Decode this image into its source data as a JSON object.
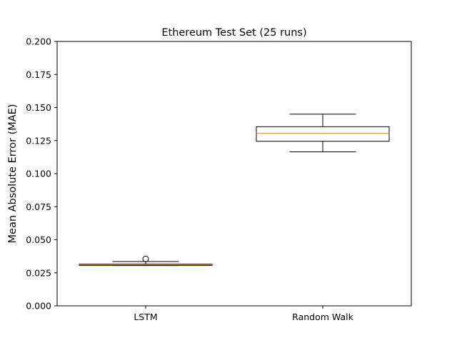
{
  "chart_data": {
    "type": "box",
    "title": "Ethereum Test Set (25 runs)",
    "xlabel": "",
    "ylabel": "Mean Absolute Error (MAE)",
    "ylim": [
      0.0,
      0.2
    ],
    "yticks": [
      "0.000",
      "0.025",
      "0.050",
      "0.075",
      "0.100",
      "0.125",
      "0.150",
      "0.175",
      "0.200"
    ],
    "grid": false,
    "categories": [
      "LSTM",
      "Random Walk"
    ],
    "boxes": [
      {
        "label": "LSTM",
        "whisker_low": 0.0305,
        "q1": 0.0305,
        "median": 0.031,
        "q3": 0.0315,
        "whisker_high": 0.0335,
        "outliers": [
          0.0355
        ]
      },
      {
        "label": "Random Walk",
        "whisker_low": 0.1165,
        "q1": 0.1245,
        "median": 0.1305,
        "q3": 0.1355,
        "whisker_high": 0.145,
        "outliers": []
      }
    ],
    "colors": {
      "box": "#000000",
      "median": "#ff7f0e",
      "outlier": "#000000"
    }
  }
}
